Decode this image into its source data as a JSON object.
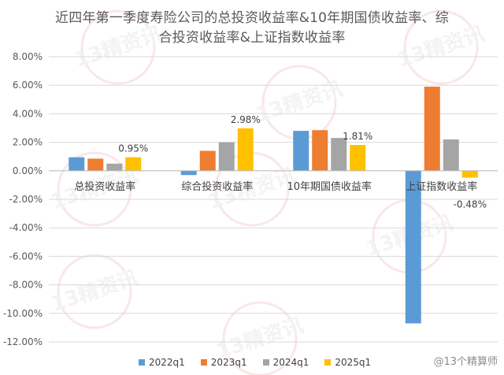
{
  "chart_data": {
    "type": "bar",
    "title_line1": "近四年第一季度寿险公司的总投资收益率&10年期国债收益率、综",
    "title_line2": "合投资收益率&上证指数收益率",
    "categories": [
      "总投资收益率",
      "综合投资收益率",
      "10年期国债收益率",
      "上证指数收益率"
    ],
    "series": [
      {
        "name": "2022q1",
        "color": "#5B9BD5",
        "values": [
          0.95,
          -0.3,
          2.8,
          -10.7
        ]
      },
      {
        "name": "2023q1",
        "color": "#ED7D31",
        "values": [
          0.85,
          1.4,
          2.85,
          5.9
        ]
      },
      {
        "name": "2024q1",
        "color": "#A5A5A5",
        "values": [
          0.5,
          2.0,
          2.3,
          2.2
        ]
      },
      {
        "name": "2025q1",
        "color": "#FFC000",
        "values": [
          0.95,
          2.98,
          1.81,
          -0.48
        ]
      }
    ],
    "data_labels": [
      {
        "category": 0,
        "series": 3,
        "text": "0.95%"
      },
      {
        "category": 1,
        "series": 3,
        "text": "2.98%"
      },
      {
        "category": 2,
        "series": 3,
        "text": "1.81%"
      },
      {
        "category": 3,
        "series": 3,
        "text": "-0.48%"
      }
    ],
    "ylim": [
      -12,
      8
    ],
    "yticks": [
      "8.00%",
      "6.00%",
      "4.00%",
      "2.00%",
      "0.00%",
      "-2.00%",
      "-4.00%",
      "-6.00%",
      "-8.00%",
      "-10.00%",
      "-12.00%"
    ],
    "ytick_values": [
      8,
      6,
      4,
      2,
      0,
      -2,
      -4,
      -6,
      -8,
      -10,
      -12
    ],
    "grid": true,
    "legend_position": "bottom"
  },
  "watermark": {
    "text": "13精资讯",
    "bottom_text": "@13个精算师"
  }
}
